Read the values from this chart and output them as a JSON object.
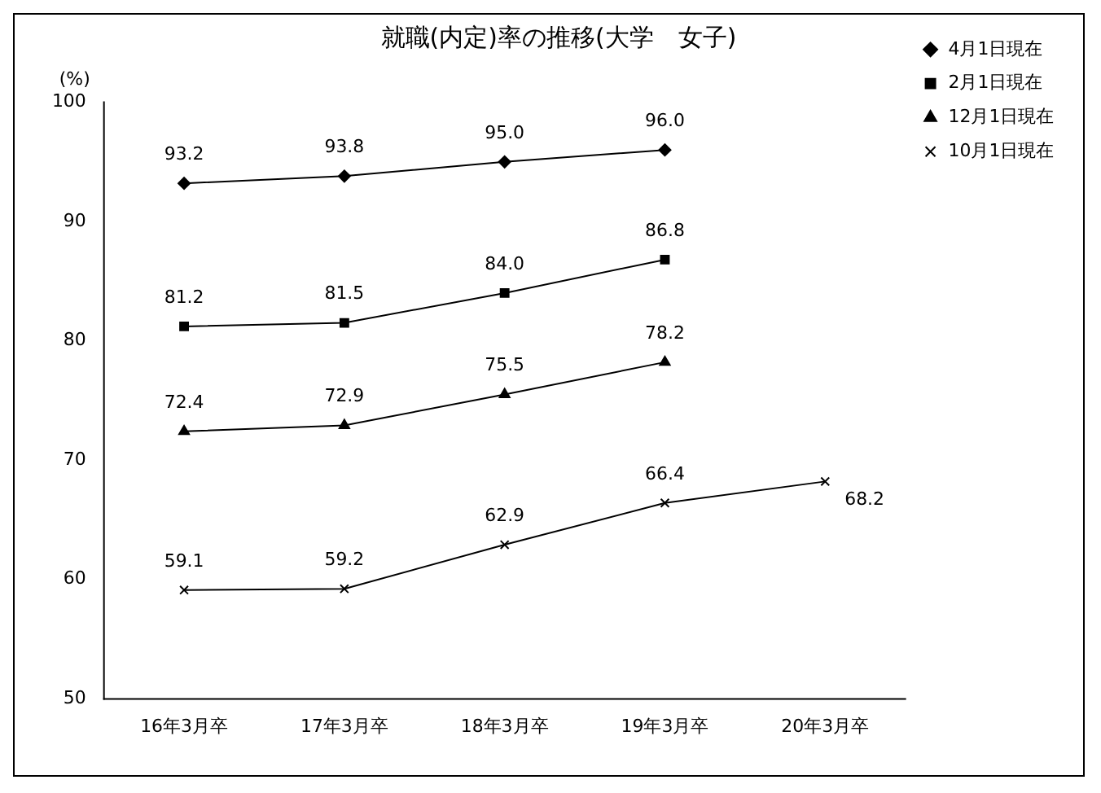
{
  "chart_data": {
    "type": "line",
    "title": "就職(内定)率の推移(大学　女子)",
    "ylabel": "(%)",
    "categories": [
      "16年3月卒",
      "17年3月卒",
      "18年3月卒",
      "19年3月卒",
      "20年3月卒"
    ],
    "series": [
      {
        "name": "4月1日現在",
        "color": "#000000",
        "marker": "diamond",
        "values": [
          93.2,
          93.8,
          95.0,
          96.0,
          null
        ],
        "value_labels": [
          "93.2",
          "93.8",
          "95.0",
          "96.0",
          null
        ]
      },
      {
        "name": "2月1日現在",
        "color": "#000000",
        "marker": "square",
        "values": [
          81.2,
          81.5,
          84.0,
          86.8,
          null
        ],
        "value_labels": [
          "81.2",
          "81.5",
          "84.0",
          "86.8",
          null
        ]
      },
      {
        "name": "12月1日現在",
        "color": "#000000",
        "marker": "triangle",
        "values": [
          72.4,
          72.9,
          75.5,
          78.2,
          null
        ],
        "value_labels": [
          "72.4",
          "72.9",
          "75.5",
          "78.2",
          null
        ]
      },
      {
        "name": "10月1日現在",
        "color": "#000000",
        "marker": "cross",
        "values": [
          59.1,
          59.2,
          62.9,
          66.4,
          68.2
        ],
        "value_labels": [
          "59.1",
          "59.2",
          "62.9",
          "66.4",
          "68.2"
        ]
      }
    ],
    "ylim": [
      50,
      100
    ],
    "yticks": [
      50,
      60,
      70,
      80,
      90,
      100
    ],
    "grid": false,
    "legend": "top right",
    "line_style": "solid"
  }
}
